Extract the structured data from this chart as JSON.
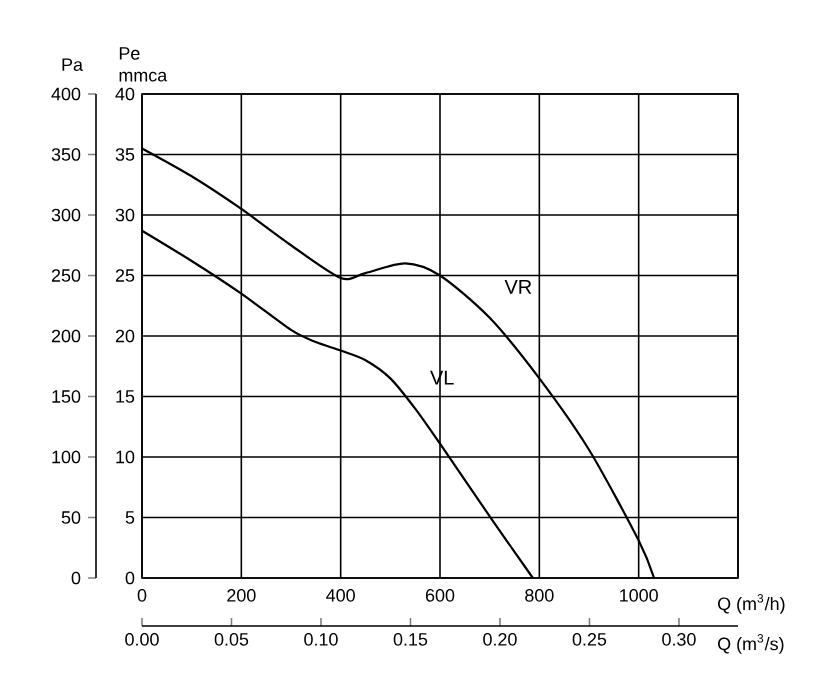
{
  "chart_data": {
    "type": "line",
    "xlabel": "Q (m$^{3}$/h)",
    "ylabel": "Pa",
    "y2label": "Pe mmca",
    "x2label": "Q (m$^{3}$/s)",
    "xlim": [
      0,
      1200
    ],
    "xticks": [
      0,
      200,
      400,
      600,
      800,
      1000,
      {
        "value": 1200,
        "label": null
      }
    ],
    "ylim": [
      0,
      400
    ],
    "yticks": [
      0,
      50,
      100,
      150,
      200,
      250,
      300,
      350,
      400
    ],
    "y2lim": [
      0,
      40
    ],
    "y2ticks": [
      0,
      5,
      10,
      15,
      20,
      25,
      30,
      35,
      40
    ],
    "x2lim": [
      0,
      0.333
    ],
    "x2ticks": [
      {
        "value": 0,
        "label": "0.00"
      },
      {
        "value": 0.05,
        "label": "0.05"
      },
      {
        "value": 0.1,
        "label": "0.10"
      },
      {
        "value": 0.15,
        "label": "0.15"
      },
      {
        "value": 0.2,
        "label": "0.20"
      },
      {
        "value": 0.25,
        "label": "0.25"
      },
      {
        "value": 0.3,
        "label": "0.30"
      }
    ],
    "grid": true,
    "series": [
      {
        "name": "VR",
        "color": "#000000",
        "x": [
          0,
          100,
          200,
          300,
          400,
          450,
          530,
          600,
          700,
          800,
          900,
          1000,
          1031
        ],
        "values": [
          355,
          332,
          305,
          275,
          248,
          252,
          260,
          250,
          215,
          165,
          106,
          31,
          0
        ]
      },
      {
        "name": "VL",
        "color": "#000000",
        "x": [
          0,
          100,
          200,
          300,
          350,
          400,
          450,
          500,
          550,
          600,
          700,
          787
        ],
        "values": [
          287,
          262,
          235,
          205,
          195,
          188,
          180,
          165,
          140,
          111,
          51,
          0
        ]
      }
    ]
  }
}
